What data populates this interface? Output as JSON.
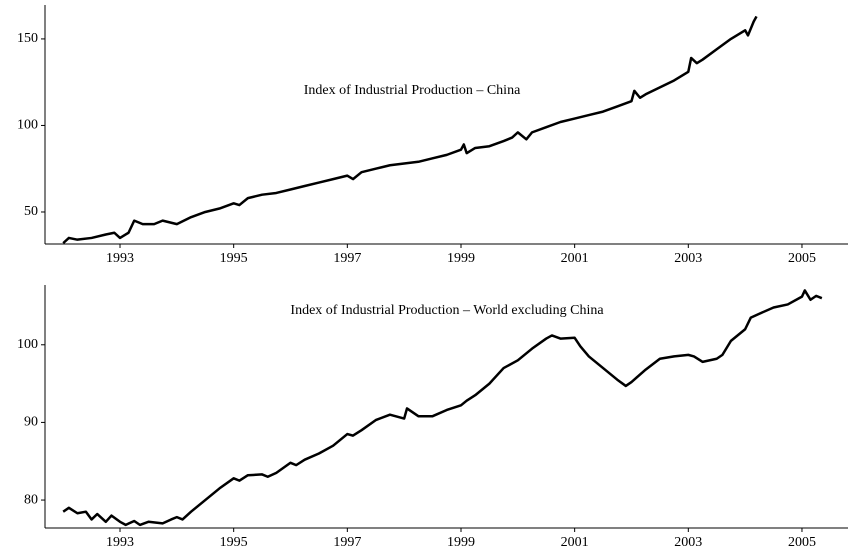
{
  "chart_data": [
    {
      "type": "line",
      "annotation": "Index of Industrial Production – China",
      "x": [
        1992.0,
        1992.1,
        1992.25,
        1992.5,
        1992.75,
        1992.9,
        1993.0,
        1993.15,
        1993.25,
        1993.4,
        1993.6,
        1993.75,
        1994.0,
        1994.25,
        1994.5,
        1994.75,
        1995.0,
        1995.1,
        1995.25,
        1995.5,
        1995.75,
        1996.0,
        1996.25,
        1996.5,
        1996.75,
        1997.0,
        1997.1,
        1997.25,
        1997.5,
        1997.75,
        1998.0,
        1998.25,
        1998.5,
        1998.75,
        1999.0,
        1999.05,
        1999.1,
        1999.25,
        1999.5,
        1999.75,
        1999.9,
        2000.0,
        2000.15,
        2000.25,
        2000.5,
        2000.75,
        2001.0,
        2001.25,
        2001.5,
        2001.75,
        2002.0,
        2002.05,
        2002.15,
        2002.25,
        2002.5,
        2002.75,
        2003.0,
        2003.05,
        2003.15,
        2003.25,
        2003.5,
        2003.75,
        2004.0,
        2004.05,
        2004.15,
        2004.2
      ],
      "series": [
        {
          "color": "#000000",
          "values": [
            32,
            35,
            34,
            35,
            37,
            38,
            35,
            38,
            45,
            43,
            43,
            45,
            43,
            47,
            50,
            52,
            55,
            54,
            58,
            60,
            61,
            63,
            65,
            67,
            69,
            71,
            69,
            73,
            75,
            77,
            78,
            79,
            81,
            83,
            86,
            89,
            84,
            87,
            88,
            91,
            93,
            96,
            92,
            96,
            99,
            102,
            104,
            106,
            108,
            111,
            114,
            120,
            116,
            118,
            122,
            126,
            131,
            139,
            136,
            138,
            144,
            150,
            155,
            152,
            160,
            163
          ]
        }
      ],
      "xlim": [
        1991.68,
        2005.81
      ],
      "xticks": [
        1993,
        1995,
        1997,
        1999,
        2001,
        2003,
        2005
      ],
      "ylim": [
        31.5,
        169.6
      ],
      "yticks": [
        50,
        100,
        150
      ]
    },
    {
      "type": "line",
      "annotation": "Index of Industrial Production – World excluding China",
      "x": [
        1992.0,
        1992.1,
        1992.25,
        1992.4,
        1992.5,
        1992.6,
        1992.75,
        1992.85,
        1993.0,
        1993.1,
        1993.25,
        1993.35,
        1993.5,
        1993.75,
        1993.9,
        1994.0,
        1994.1,
        1994.25,
        1994.5,
        1994.75,
        1995.0,
        1995.1,
        1995.25,
        1995.5,
        1995.6,
        1995.75,
        1996.0,
        1996.1,
        1996.25,
        1996.5,
        1996.75,
        1997.0,
        1997.1,
        1997.25,
        1997.5,
        1997.75,
        1998.0,
        1998.05,
        1998.25,
        1998.5,
        1998.75,
        1999.0,
        1999.1,
        1999.25,
        1999.5,
        1999.75,
        2000.0,
        2000.25,
        2000.5,
        2000.6,
        2000.75,
        2001.0,
        2001.1,
        2001.25,
        2001.5,
        2001.75,
        2001.9,
        2002.0,
        2002.25,
        2002.5,
        2002.75,
        2003.0,
        2003.1,
        2003.25,
        2003.5,
        2003.6,
        2003.75,
        2004.0,
        2004.1,
        2004.25,
        2004.5,
        2004.75,
        2005.0,
        2005.05,
        2005.15,
        2005.25,
        2005.35
      ],
      "series": [
        {
          "color": "#000000",
          "values": [
            78.5,
            79,
            78.3,
            78.5,
            77.5,
            78.2,
            77.2,
            78,
            77.2,
            76.8,
            77.3,
            76.8,
            77.2,
            77,
            77.5,
            77.8,
            77.5,
            78.5,
            80,
            81.5,
            82.8,
            82.5,
            83.2,
            83.3,
            83,
            83.5,
            84.8,
            84.5,
            85.2,
            86,
            87,
            88.5,
            88.3,
            89,
            90.3,
            91,
            90.5,
            91.8,
            90.8,
            90.8,
            91.6,
            92.2,
            92.8,
            93.5,
            95,
            97,
            98,
            99.5,
            100.8,
            101.2,
            100.8,
            100.9,
            99.8,
            98.5,
            97,
            95.5,
            94.7,
            95.2,
            96.8,
            98.2,
            98.5,
            98.7,
            98.5,
            97.8,
            98.2,
            98.7,
            100.5,
            102,
            103.5,
            104,
            104.8,
            105.2,
            106.2,
            107,
            105.8,
            106.3,
            106
          ]
        }
      ],
      "xlim": [
        1991.68,
        2005.81
      ],
      "xticks": [
        1993,
        1995,
        1997,
        1999,
        2001,
        2003,
        2005
      ],
      "ylim": [
        76.4,
        107.7
      ],
      "yticks": [
        80,
        90,
        100
      ]
    }
  ]
}
